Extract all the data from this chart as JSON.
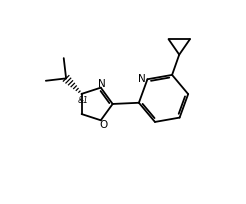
{
  "background": "#ffffff",
  "line_color": "#000000",
  "lw": 1.3,
  "figsize": [
    2.46,
    2.04
  ],
  "dpi": 100,
  "label_fontsize": 7.5,
  "stereo_label": "&1",
  "atom_N1": "N",
  "atom_N2": "N",
  "atom_O": "O"
}
